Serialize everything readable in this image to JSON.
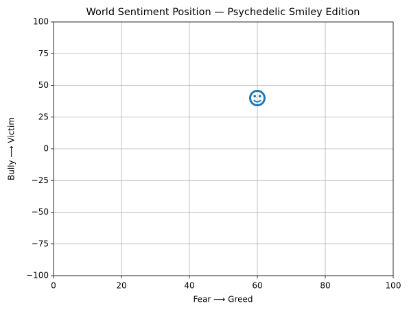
{
  "chart_data": {
    "type": "scatter",
    "title": "World Sentiment Position — Psychedelic Smiley Edition",
    "x_label": "Fear ⟶ Greed",
    "y_label": "Bully ⟶ Victim",
    "x": [
      60
    ],
    "values": [
      40
    ],
    "color": "#1f77b4",
    "xlim": [
      0,
      100
    ],
    "xticks": [
      0,
      20,
      40,
      60,
      80,
      100
    ],
    "ylim": [
      -100,
      100
    ],
    "yticks": [
      {
        "value": -100,
        "label": "−100"
      },
      {
        "value": -75,
        "label": "−75"
      },
      {
        "value": -50,
        "label": "−50"
      },
      {
        "value": -25,
        "label": "−25"
      },
      0,
      25,
      50,
      75,
      100
    ],
    "grid": true
  }
}
